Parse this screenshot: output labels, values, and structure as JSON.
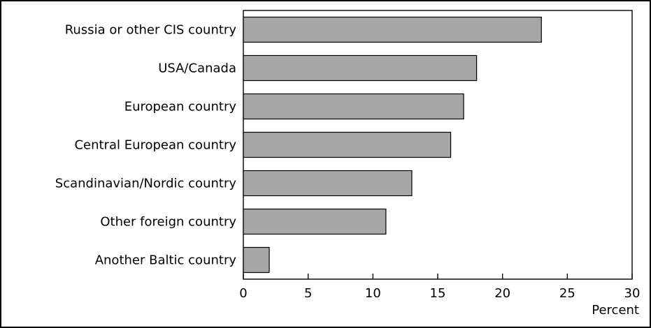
{
  "chart_data": {
    "type": "bar",
    "orientation": "horizontal",
    "categories": [
      "Russia or other CIS country",
      "USA/Canada",
      "European country",
      "Central European country",
      "Scandinavian/Nordic country",
      "Other foreign country",
      "Another Baltic country"
    ],
    "values": [
      23,
      18,
      17,
      16,
      13,
      11,
      2
    ],
    "xlabel": "Percent",
    "xlim": [
      0,
      30
    ],
    "xticks": [
      0,
      5,
      10,
      15,
      20,
      25,
      30
    ],
    "grid": false,
    "colors": {
      "bar_fill": "#a6a6a6",
      "bar_stroke": "#000000"
    }
  }
}
